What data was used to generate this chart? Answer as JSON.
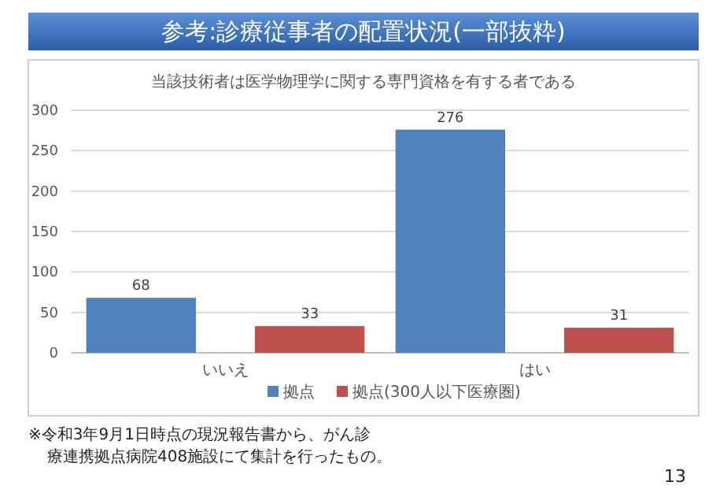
{
  "chart_data": {
    "type": "bar",
    "title": "参考:診療従事者の配置状況(一部抜粋)",
    "subtitle": "当該技術者は医学物理学に関する専門資格を有する者である",
    "categories": [
      "いいえ",
      "はい"
    ],
    "series": [
      {
        "name": "拠点",
        "color": "#4f81bd",
        "values": [
          68,
          276
        ]
      },
      {
        "name": "拠点(300人以下医療圏)",
        "color": "#c0504d",
        "values": [
          33,
          31
        ]
      }
    ],
    "ylim": [
      0,
      300
    ],
    "yticks": [
      0,
      50,
      100,
      150,
      200,
      250,
      300
    ],
    "grid": "y",
    "legend": "bottom",
    "data_labels": true,
    "annotations": [
      "※令和3年9月1日時点の現況報告書から、がん診療連携拠点病院408施設にて集計を行ったもの。",
      "13"
    ]
  }
}
